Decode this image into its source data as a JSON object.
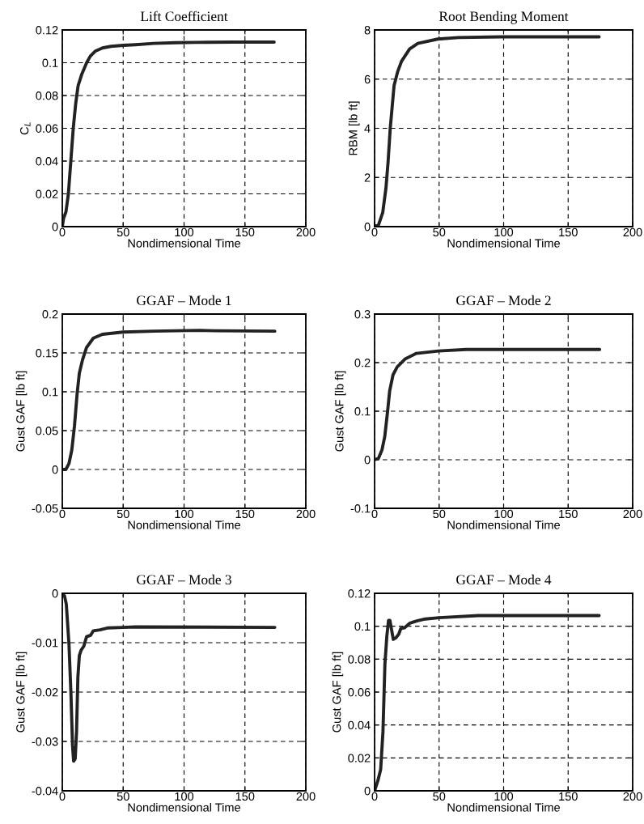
{
  "chart_data": [
    {
      "type": "line",
      "title": "Lift Coefficient",
      "xlabel": "Nondimensional Time",
      "ylabel": "C$_{L}$",
      "xlim": [
        0,
        200
      ],
      "xticks": [
        0,
        50,
        100,
        150,
        200
      ],
      "ylim": [
        0,
        0.12
      ],
      "yticks": [
        0,
        0.02,
        0.04,
        0.06,
        0.08,
        0.1,
        0.12
      ],
      "grid": true,
      "line_style": "solid",
      "series": [
        {
          "color": "#222222",
          "x": [
            0,
            1,
            3,
            5,
            7,
            9,
            11,
            13,
            16,
            20,
            23,
            27,
            33,
            40,
            50,
            60,
            75,
            93,
            110,
            140,
            174
          ],
          "values": [
            0,
            0.005,
            0.009,
            0.02,
            0.04,
            0.06,
            0.075,
            0.086,
            0.093,
            0.1,
            0.104,
            0.107,
            0.109,
            0.11,
            0.1106,
            0.111,
            0.1118,
            0.1122,
            0.1124,
            0.1126,
            0.1126
          ]
        }
      ]
    },
    {
      "type": "line",
      "title": "Root Bending Moment",
      "xlabel": "Nondimensional Time",
      "ylabel": "RBM [lb ft]",
      "xlim": [
        0,
        200
      ],
      "xticks": [
        0,
        50,
        100,
        150,
        200
      ],
      "ylim": [
        0,
        8
      ],
      "yticks": [
        0,
        2,
        4,
        6,
        8
      ],
      "grid": true,
      "line_style": "solid",
      "series": [
        {
          "color": "#222222",
          "x": [
            0,
            3.1,
            6.3,
            8.8,
            10.5,
            12.1,
            13.6,
            15.1,
            17.8,
            20.9,
            27.2,
            33.5,
            49,
            65,
            98,
            174
          ],
          "values": [
            0,
            0.08,
            0.57,
            1.56,
            2.66,
            3.98,
            4.86,
            5.74,
            6.29,
            6.73,
            7.23,
            7.45,
            7.63,
            7.69,
            7.72,
            7.72
          ]
        }
      ]
    },
    {
      "type": "line",
      "title": "GGAF – Mode 1",
      "xlabel": "Nondimensional Time",
      "ylabel": "Gust GAF [lb ft]",
      "xlim": [
        0,
        200
      ],
      "xticks": [
        0,
        50,
        100,
        150,
        200
      ],
      "ylim": [
        -0.05,
        0.2
      ],
      "yticks": [
        -0.05,
        0,
        0.05,
        0.1,
        0.15,
        0.2
      ],
      "grid": true,
      "line_style": "solid",
      "series": [
        {
          "color": "#222222",
          "x": [
            0,
            2.9,
            5.5,
            7.8,
            10,
            12.2,
            14,
            16.6,
            19.9,
            25.5,
            33,
            49.8,
            75,
            113,
            126,
            174.5
          ],
          "values": [
            0,
            0,
            0.0076,
            0.025,
            0.056,
            0.098,
            0.124,
            0.141,
            0.157,
            0.169,
            0.174,
            0.1768,
            0.178,
            0.179,
            0.1785,
            0.178
          ]
        }
      ]
    },
    {
      "type": "line",
      "title": "GGAF – Mode 2",
      "xlabel": "Nondimensional Time",
      "ylabel": "Gust GAF [lb ft]",
      "xlim": [
        0,
        200
      ],
      "xticks": [
        0,
        50,
        100,
        150,
        200
      ],
      "ylim": [
        -0.1,
        0.3
      ],
      "yticks": [
        -0.1,
        0,
        0.1,
        0.2,
        0.3
      ],
      "grid": true,
      "line_style": "solid",
      "series": [
        {
          "color": "#222222",
          "x": [
            0,
            3,
            5.8,
            7.9,
            10,
            11.7,
            14.3,
            17.5,
            23.9,
            32.4,
            49.5,
            70.9,
            174.4
          ],
          "values": [
            0,
            0.003,
            0.021,
            0.048,
            0.098,
            0.142,
            0.175,
            0.191,
            0.208,
            0.219,
            0.224,
            0.227,
            0.227
          ]
        }
      ]
    },
    {
      "type": "line",
      "title": "GGAF – Mode 3",
      "xlabel": "Nondimensional Time",
      "ylabel": "Gust GAF [lb ft]",
      "xlim": [
        0,
        200
      ],
      "xticks": [
        0,
        50,
        100,
        150,
        200
      ],
      "ylim": [
        -0.04,
        0
      ],
      "yticks": [
        -0.04,
        -0.03,
        -0.02,
        -0.01,
        0
      ],
      "grid": true,
      "line_style": "solid",
      "series": [
        {
          "color": "#222222",
          "x": [
            0,
            1.8,
            3.3,
            5.5,
            7.1,
            8.4,
            9.3,
            10.6,
            11.7,
            12.8,
            14,
            15.5,
            17.7,
            19.9,
            23.3,
            25.5,
            31,
            37.7,
            49.8,
            60,
            174.5
          ],
          "values": [
            0,
            -0.0005,
            -0.0022,
            -0.0104,
            -0.0203,
            -0.0308,
            -0.034,
            -0.0335,
            -0.028,
            -0.017,
            -0.0126,
            -0.0115,
            -0.0107,
            -0.0088,
            -0.0085,
            -0.0076,
            -0.0074,
            -0.007,
            -0.0069,
            -0.0068,
            -0.0069
          ]
        }
      ]
    },
    {
      "type": "line",
      "title": "GGAF – Mode 4",
      "xlabel": "Nondimensional Time",
      "ylabel": "Gust GAF [lb ft]",
      "xlim": [
        0,
        200
      ],
      "xticks": [
        0,
        50,
        100,
        150,
        200
      ],
      "ylim": [
        0,
        0.12
      ],
      "yticks": [
        0,
        0.02,
        0.04,
        0.06,
        0.08,
        0.1,
        0.12
      ],
      "grid": true,
      "line_style": "solid",
      "series": [
        {
          "color": "#222222",
          "x": [
            0,
            2.6,
            4.7,
            6.5,
            8,
            9.5,
            10.8,
            11.9,
            13,
            14.5,
            16.6,
            18.8,
            20.3,
            23.1,
            27.4,
            32.8,
            39.3,
            50,
            80.3,
            174
          ],
          "values": [
            0,
            0.0063,
            0.0129,
            0.036,
            0.077,
            0.094,
            0.1035,
            0.1035,
            0.0986,
            0.092,
            0.093,
            0.0953,
            0.0986,
            0.099,
            0.1019,
            0.1032,
            0.1044,
            0.1052,
            0.1065,
            0.1065
          ]
        }
      ]
    }
  ]
}
